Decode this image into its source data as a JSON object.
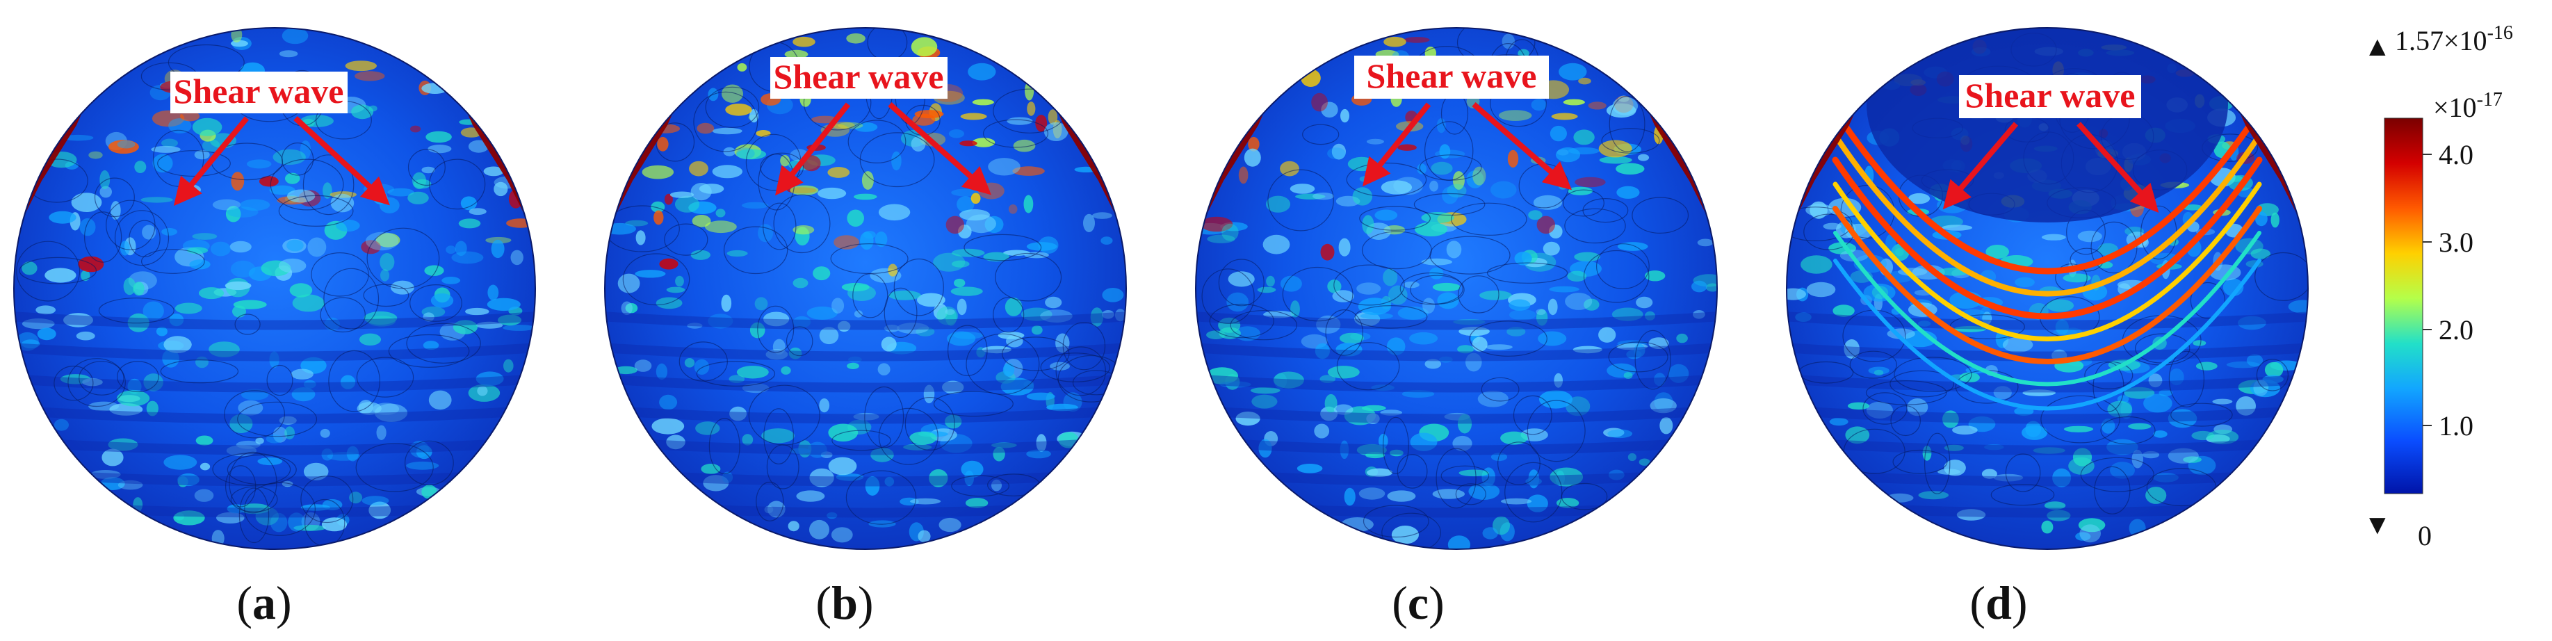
{
  "figure": {
    "panels": [
      {
        "id": "a",
        "label": "a",
        "annotation": "Shear wave"
      },
      {
        "id": "b",
        "label": "b",
        "annotation": "Shear wave"
      },
      {
        "id": "c",
        "label": "c",
        "annotation": "Shear wave"
      },
      {
        "id": "d",
        "label": "d",
        "annotation": "Shear wave"
      }
    ],
    "colorbar": {
      "max_base": "1.57×10",
      "max_exp": "-16",
      "scale_base": "×10",
      "scale_exp": "-17",
      "ticks": [
        "4.0",
        "3.0",
        "2.0",
        "1.0"
      ],
      "min": "0",
      "colors": [
        "#7a0000",
        "#d40000",
        "#ff5a00",
        "#ffd000",
        "#b4ff4a",
        "#22e0c8",
        "#12a6ff",
        "#0a4dff",
        "#0014a8"
      ]
    }
  }
}
